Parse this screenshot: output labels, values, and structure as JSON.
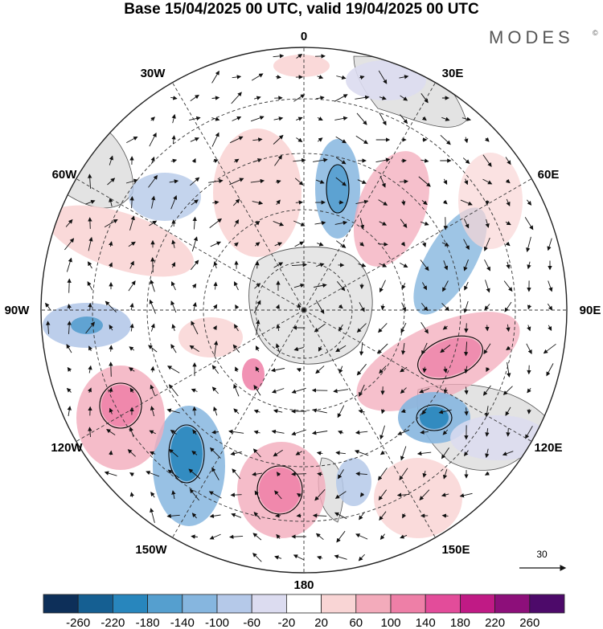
{
  "title": "Base 15/04/2025 00 UTC, valid 19/04/2025 00 UTC",
  "brand": "MODES",
  "brand_mark": "©",
  "map": {
    "projection": "polar-stereographic-south",
    "grid": "on",
    "longitude_labels": [
      "0",
      "30E",
      "60E",
      "90E",
      "120E",
      "150E",
      "180",
      "150W",
      "120W",
      "90W",
      "60W",
      "30W"
    ],
    "vector_reference_value": "30",
    "colors": {
      "land": "#dcdcdc",
      "continent": "#e6e6e6",
      "coast": "#444444",
      "grid": "#333333",
      "arrow": "#111111",
      "contour": "#000000"
    }
  },
  "colorbar": {
    "ticks": [
      "-260",
      "-220",
      "-180",
      "-140",
      "-100",
      "-60",
      "-20",
      "20",
      "60",
      "100",
      "140",
      "180",
      "220",
      "260"
    ],
    "colors": [
      "#0d2f59",
      "#155f92",
      "#2886bd",
      "#559fcf",
      "#86b6df",
      "#b5c9e9",
      "#dcdcf0",
      "#ffffff",
      "#f9d5d5",
      "#f3abbb",
      "#ee7fa7",
      "#e34c9a",
      "#c01a85",
      "#8d0f7a",
      "#4d0a6a"
    ]
  },
  "anomalies": [
    {
      "label": "positive",
      "value": 60
    },
    {
      "label": "negative",
      "value": -60
    }
  ]
}
